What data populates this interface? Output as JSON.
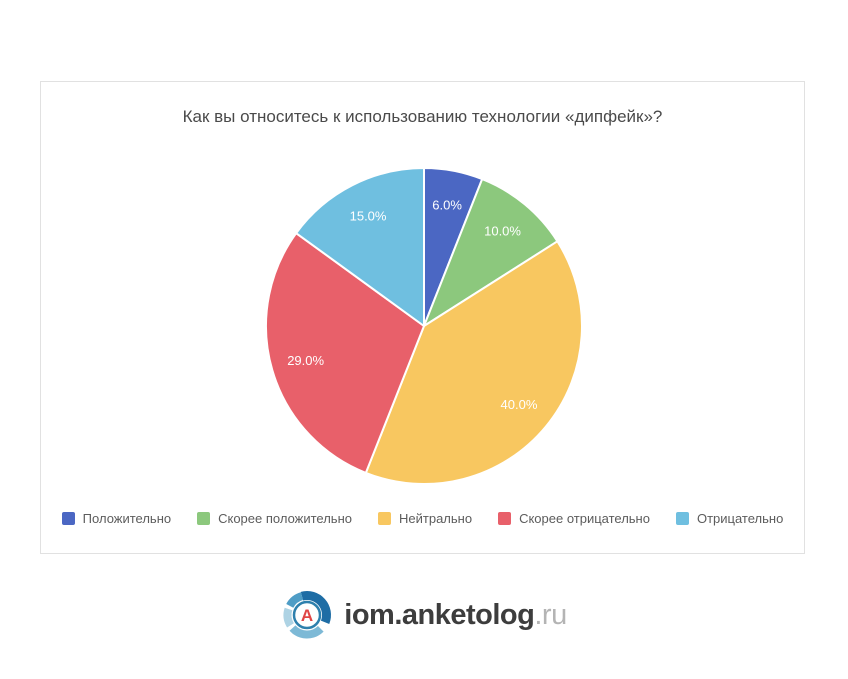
{
  "chart_data": {
    "type": "pie",
    "title": "Как вы относитесь к использованию технологии «дипфейк»?",
    "labels": [
      "Положительно",
      "Скорее положительно",
      "Нейтрально",
      "Скорее отрицательно",
      "Отрицательно"
    ],
    "values": [
      6.0,
      10.0,
      40.0,
      29.0,
      15.0
    ],
    "value_labels": [
      "6.0%",
      "10.0%",
      "40.0%",
      "29.0%",
      "15.0%"
    ],
    "colors": [
      "#4b67c3",
      "#8cc87d",
      "#f8c760",
      "#e8606a",
      "#6fbfe0"
    ],
    "start_angle_deg": 0,
    "direction": "clockwise",
    "slice_border_color": "#ffffff",
    "slice_label_color": "#ffffff",
    "legend_position": "bottom"
  },
  "footer": {
    "logo_text_main": "iom.anketolog",
    "logo_text_suffix": ".ru",
    "logo_letter": "A",
    "logo_letter_color": "#e04545",
    "logo_ring_colors": [
      "#1e6da5",
      "#7db9d6",
      "#aed3e4",
      "#4f9dc6"
    ],
    "logo_inner_ring_color": "#2e80ad"
  }
}
